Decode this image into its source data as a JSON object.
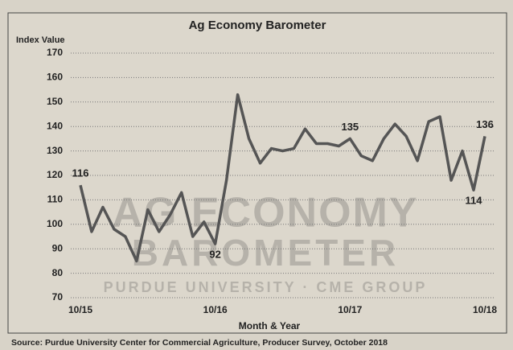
{
  "chart_data": {
    "type": "line",
    "title": "Ag Economy Barometer",
    "y_label": "Index Value",
    "x_label": "Month & Year",
    "source": "Source: Purdue University Center for Commercial Agriculture, Producer Survey, October 2018",
    "watermark": [
      "AG ECONOMY",
      "BAROMETER",
      "PURDUE UNIVERSITY  ·  CME GROUP"
    ],
    "categories": [
      "10/15",
      null,
      null,
      null,
      null,
      null,
      null,
      null,
      null,
      null,
      null,
      null,
      "10/16",
      null,
      null,
      null,
      null,
      null,
      null,
      null,
      null,
      null,
      null,
      null,
      "10/17",
      null,
      null,
      null,
      null,
      null,
      null,
      null,
      null,
      null,
      null,
      null,
      "10/18"
    ],
    "series": [
      {
        "name": "Index Value",
        "color": "#555555",
        "values": [
          116,
          97,
          107,
          98,
          95,
          85,
          106,
          97,
          104,
          113,
          95,
          101,
          92,
          118,
          153,
          135,
          125,
          131,
          130,
          131,
          139,
          133,
          133,
          132,
          135,
          128,
          126,
          135,
          141,
          136,
          126,
          142,
          144,
          118,
          130,
          114,
          136
        ],
        "value_labels": [
          "116",
          null,
          null,
          null,
          null,
          null,
          null,
          null,
          null,
          null,
          null,
          null,
          "92",
          null,
          null,
          null,
          null,
          null,
          null,
          null,
          null,
          null,
          null,
          null,
          "135",
          null,
          null,
          null,
          null,
          null,
          null,
          null,
          null,
          null,
          null,
          "114",
          "136"
        ]
      }
    ],
    "ylim": [
      70,
      170
    ],
    "yticks": [
      70,
      80,
      90,
      100,
      110,
      120,
      130,
      140,
      150,
      160,
      170
    ],
    "grid": true
  }
}
